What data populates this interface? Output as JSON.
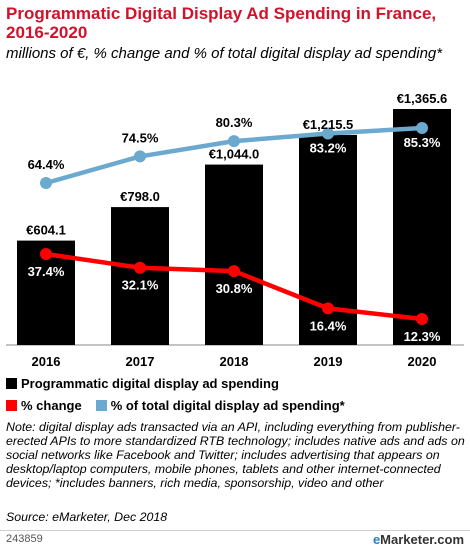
{
  "title": "Programmatic Digital Display Ad Spending in France, 2016-2020",
  "subtitle": "millions of €, % change and % of total digital display ad spending*",
  "colors": {
    "bars": "#000000",
    "change": "#ff0000",
    "share": "#6ba9cf",
    "title": "#d2112b"
  },
  "chart_data": {
    "type": "bar",
    "categories": [
      "2016",
      "2017",
      "2018",
      "2019",
      "2020"
    ],
    "series": [
      {
        "name": "Programmatic digital display ad spending",
        "type": "bar",
        "values": [
          604.1,
          798.0,
          1044.0,
          1215.5,
          1365.6
        ],
        "labels": [
          "€604.1",
          "€798.0",
          "€1,044.0",
          "€1,215.5",
          "€1,365.6"
        ]
      },
      {
        "name": "% change",
        "type": "line",
        "values": [
          37.4,
          32.1,
          30.8,
          16.4,
          12.3
        ],
        "labels": [
          "37.4%",
          "32.1%",
          "30.8%",
          "16.4%",
          "12.3%"
        ]
      },
      {
        "name": "% of total digital display ad spending*",
        "type": "line",
        "values": [
          64.4,
          74.5,
          80.3,
          83.2,
          85.3
        ],
        "labels": [
          "64.4%",
          "74.5%",
          "80.3%",
          "83.2%",
          "85.3%"
        ]
      }
    ],
    "grid": false,
    "legend_position": "bottom-left"
  },
  "legend": {
    "item1": "Programmatic digital display ad spending",
    "item2": "% change",
    "item3": "% of total digital display ad spending*"
  },
  "note": "Note: digital display ads transacted via an API, including everything from publisher-erected APIs to more standardized RTB technology; includes native ads and ads on social networks like Facebook and Twitter; includes advertising that appears on desktop/laptop computers, mobile phones, tablets and other internet-connected devices; *includes banners, rich media, sponsorship, video and other",
  "source": "Source: eMarketer, Dec 2018",
  "footer": {
    "chart_id": "243859",
    "brand_e": "e",
    "brand_rest": "Marketer",
    "brand_suffix": ".com"
  }
}
